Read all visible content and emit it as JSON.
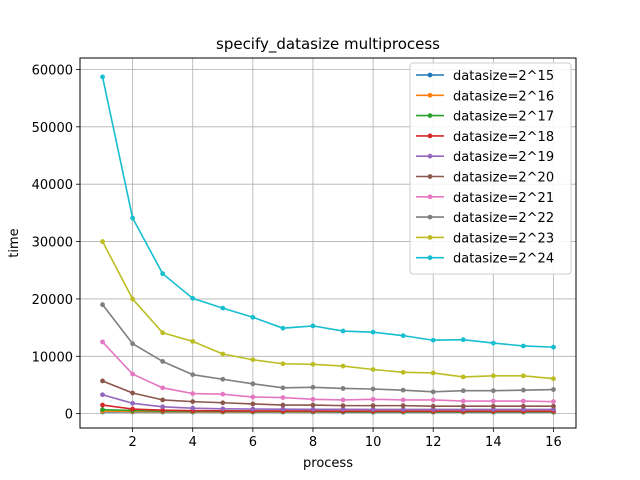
{
  "chart_data": {
    "type": "line",
    "title": "specify_datasize multiprocess",
    "xlabel": "process",
    "ylabel": "time",
    "xlim": [
      0.25,
      16.75
    ],
    "ylim": [
      -2500,
      62000
    ],
    "xticks": [
      2,
      4,
      6,
      8,
      10,
      12,
      14,
      16
    ],
    "yticks": [
      0,
      10000,
      20000,
      30000,
      40000,
      50000,
      60000
    ],
    "grid": true,
    "legend_position": "top-right",
    "x": [
      1,
      2,
      3,
      4,
      5,
      6,
      7,
      8,
      9,
      10,
      11,
      12,
      13,
      14,
      15,
      16
    ],
    "series": [
      {
        "name": "datasize=2^15",
        "color": "#1f77b4",
        "values": [
          300,
          300,
          280,
          280,
          270,
          270,
          270,
          270,
          260,
          260,
          260,
          260,
          260,
          260,
          260,
          260
        ]
      },
      {
        "name": "datasize=2^16",
        "color": "#ff7f0e",
        "values": [
          400,
          380,
          350,
          340,
          330,
          330,
          320,
          320,
          320,
          320,
          310,
          310,
          310,
          310,
          310,
          310
        ]
      },
      {
        "name": "datasize=2^17",
        "color": "#2ca02c",
        "values": [
          700,
          550,
          450,
          420,
          400,
          390,
          380,
          380,
          370,
          370,
          370,
          370,
          370,
          370,
          370,
          370
        ]
      },
      {
        "name": "datasize=2^18",
        "color": "#d62728",
        "values": [
          1500,
          800,
          600,
          520,
          500,
          480,
          470,
          470,
          460,
          460,
          460,
          460,
          460,
          460,
          460,
          460
        ]
      },
      {
        "name": "datasize=2^19",
        "color": "#9467bd",
        "values": [
          3300,
          1800,
          1200,
          950,
          850,
          800,
          780,
          760,
          750,
          740,
          740,
          740,
          740,
          740,
          740,
          740
        ]
      },
      {
        "name": "datasize=2^20",
        "color": "#8c564b",
        "values": [
          5700,
          3600,
          2400,
          2100,
          1900,
          1700,
          1500,
          1500,
          1400,
          1400,
          1400,
          1300,
          1300,
          1300,
          1300,
          1300
        ]
      },
      {
        "name": "datasize=2^21",
        "color": "#e377c2",
        "values": [
          12500,
          6900,
          4500,
          3500,
          3400,
          2900,
          2800,
          2500,
          2400,
          2500,
          2400,
          2400,
          2200,
          2200,
          2200,
          2100
        ]
      },
      {
        "name": "datasize=2^22",
        "color": "#7f7f7f",
        "values": [
          19000,
          12200,
          9100,
          6800,
          6000,
          5200,
          4500,
          4600,
          4400,
          4300,
          4100,
          3800,
          4000,
          4000,
          4100,
          4200
        ]
      },
      {
        "name": "datasize=2^23",
        "color": "#bcbd22",
        "values": [
          30000,
          20000,
          14100,
          12600,
          10400,
          9400,
          8700,
          8600,
          8300,
          7700,
          7200,
          7100,
          6400,
          6600,
          6600,
          6100
        ]
      },
      {
        "name": "datasize=2^24",
        "color": "#17becf",
        "values": [
          58700,
          34100,
          24400,
          20100,
          18400,
          16800,
          14900,
          15300,
          14400,
          14200,
          13600,
          12800,
          12900,
          12300,
          11800,
          11600
        ]
      }
    ]
  }
}
